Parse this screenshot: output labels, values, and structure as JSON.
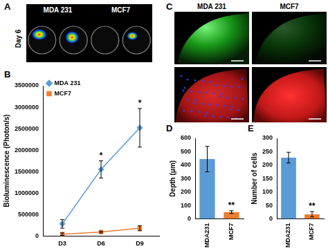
{
  "image_panels": [
    {
      "panel": "A",
      "labels": [
        "MDA 231",
        "MCF7"
      ],
      "caption": "Day 6"
    },
    {
      "panel": "C",
      "labels": [
        "MDA 231",
        "MCF7"
      ]
    }
  ],
  "chart_data": [
    {
      "panel": "B",
      "type": "line",
      "categories": [
        "D3",
        "D6",
        "D9"
      ],
      "series": [
        {
          "name": "MDA 231",
          "color": "#5b9bd5",
          "marker": "diamond",
          "values": [
            280000,
            1550000,
            2520000
          ],
          "errors": [
            100000,
            200000,
            450000
          ]
        },
        {
          "name": "MCF7",
          "color": "#ed7d31",
          "marker": "square",
          "values": [
            40000,
            90000,
            180000
          ],
          "errors": [
            30000,
            20000,
            60000
          ]
        }
      ],
      "ylabel": "Bioluminescence (Photon/s)",
      "ylim": [
        0,
        3500000
      ],
      "yticks": [
        0,
        500000,
        1000000,
        1500000,
        2000000,
        2500000,
        3000000,
        3500000
      ],
      "grid": false,
      "legend": "top-left",
      "annotations": [
        {
          "category": "D6",
          "text": "*"
        },
        {
          "category": "D9",
          "text": "*"
        }
      ]
    },
    {
      "panel": "D",
      "type": "bar",
      "categories": [
        "MDA231",
        "MCF7"
      ],
      "values": [
        445,
        50
      ],
      "errors": [
        95,
        10
      ],
      "colors": [
        "#5b9bd5",
        "#ed7d31"
      ],
      "ylabel": "Depth (μm)",
      "ylim": [
        0,
        600
      ],
      "yticks": [
        0,
        100,
        200,
        300,
        400,
        500,
        600
      ],
      "grid": false,
      "annotations": [
        {
          "category": "MCF7",
          "text": "**"
        }
      ]
    },
    {
      "panel": "E",
      "type": "bar",
      "categories": [
        "MDA231",
        "MCF7"
      ],
      "values": [
        228,
        17
      ],
      "errors": [
        20,
        10
      ],
      "colors": [
        "#5b9bd5",
        "#ed7d31"
      ],
      "ylabel": "Number of cells",
      "ylim": [
        0,
        300
      ],
      "yticks": [
        0,
        50,
        100,
        150,
        200,
        250,
        300
      ],
      "grid": false,
      "annotations": [
        {
          "category": "MCF7",
          "text": "**"
        }
      ]
    }
  ]
}
